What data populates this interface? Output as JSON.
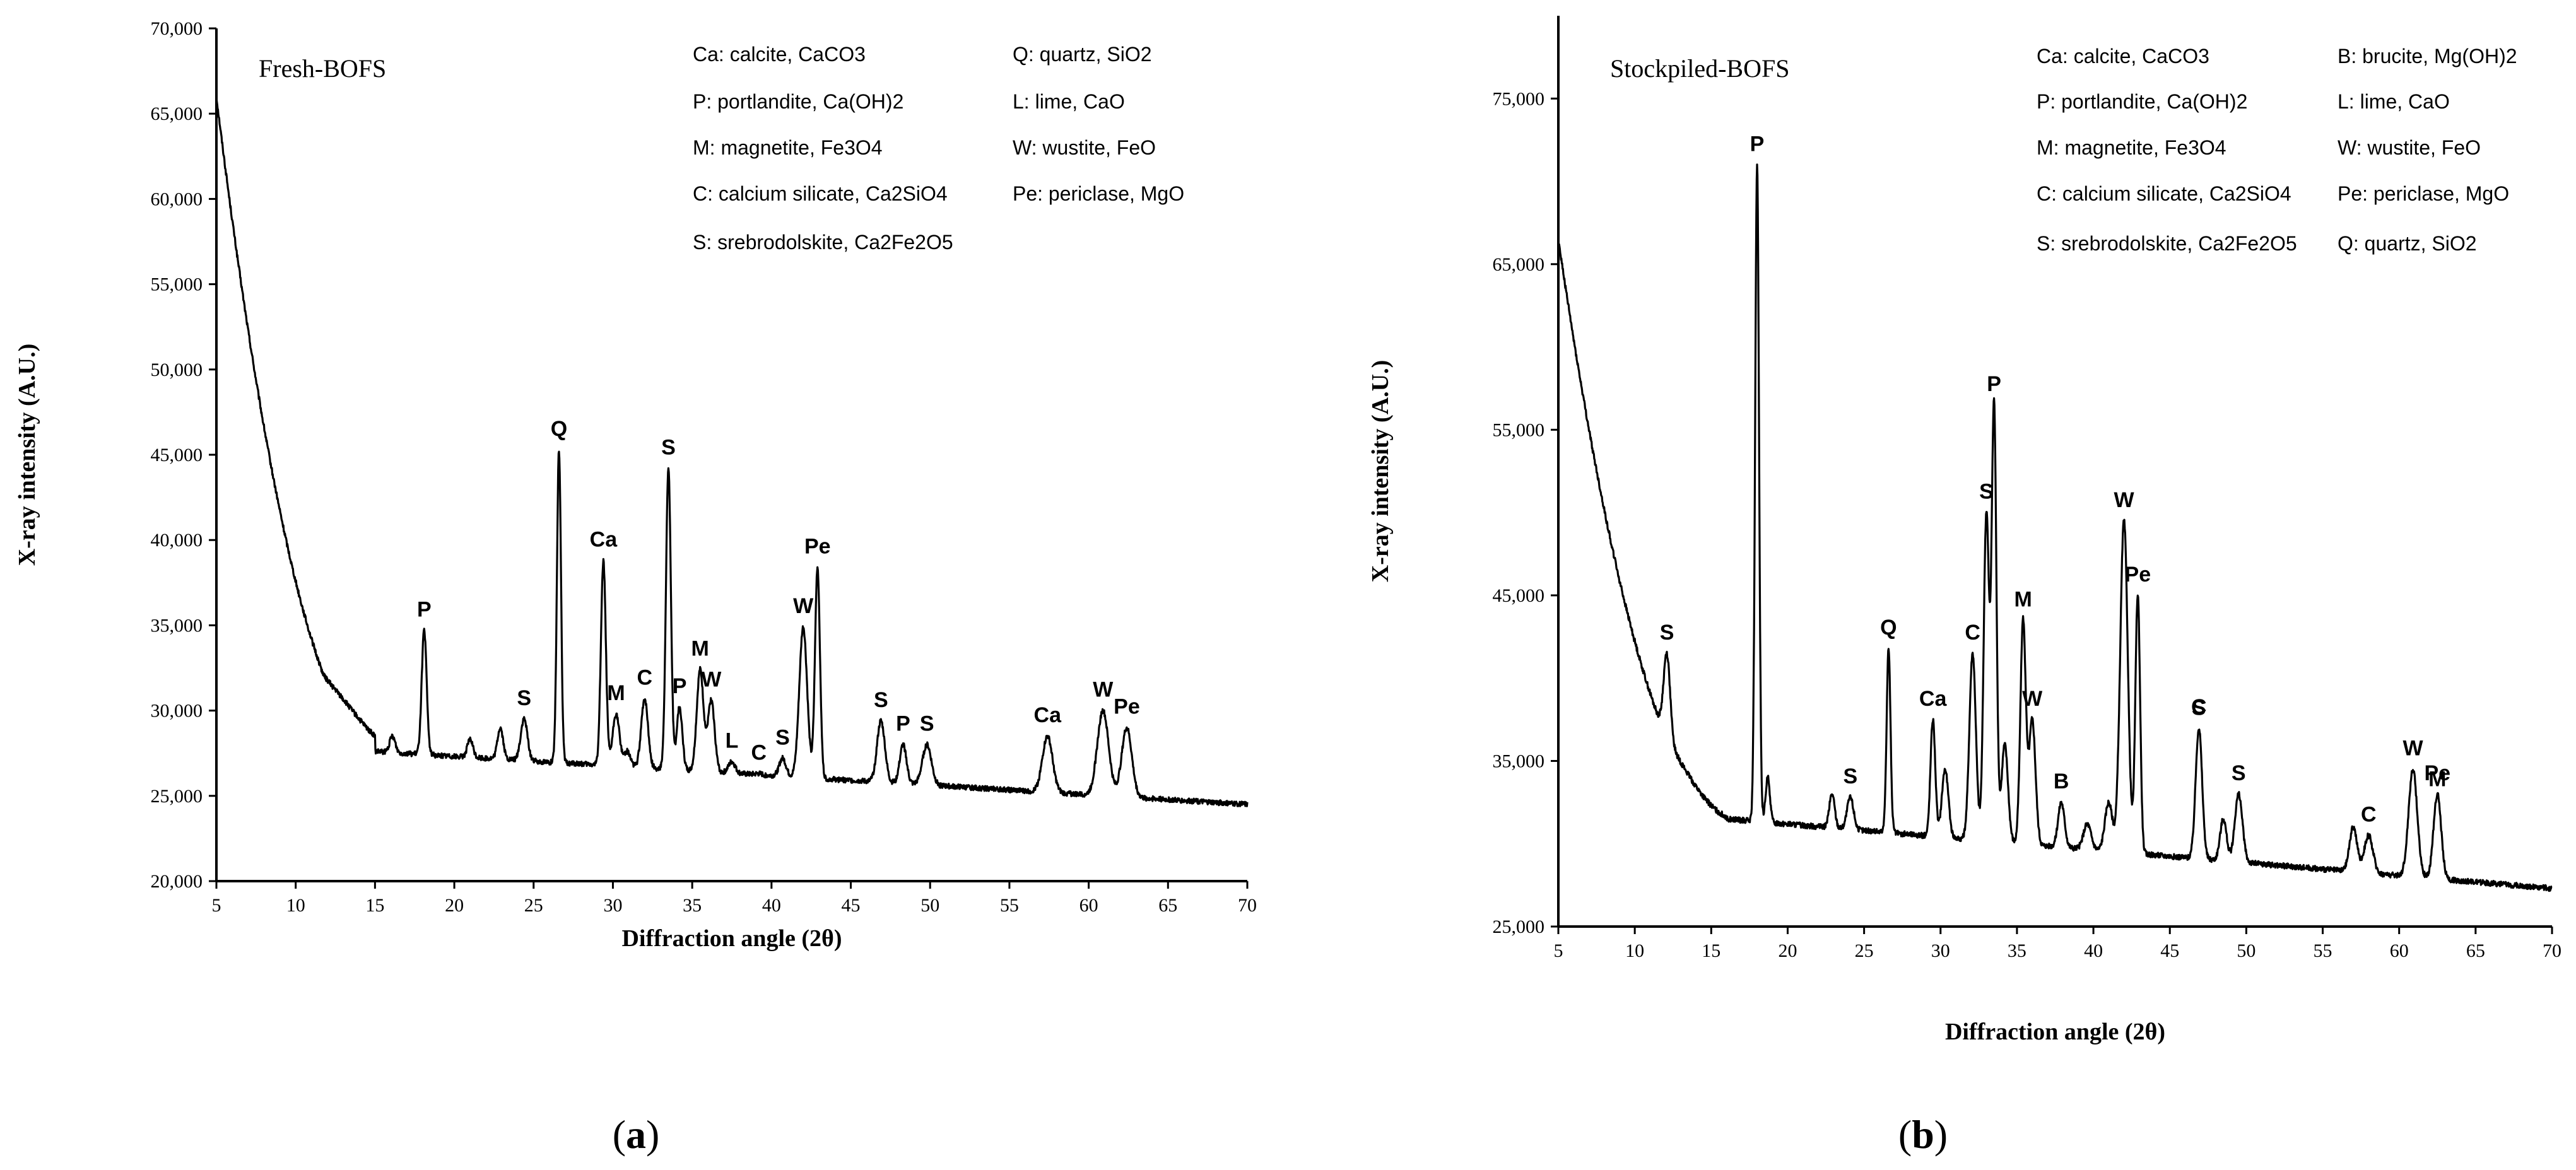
{
  "chart_data": [
    {
      "type": "line",
      "title": "Fresh-BOFS",
      "caption": "(a)",
      "caption_letter": "a",
      "xlabel": "Diffraction angle (2θ)",
      "ylabel": "X-ray intensity (A.U.)",
      "xlim": [
        5,
        70
      ],
      "ylim": [
        20000,
        70000
      ],
      "xticks": [
        "5",
        "10",
        "15",
        "20",
        "25",
        "30",
        "35",
        "40",
        "45",
        "50",
        "55",
        "60",
        "65",
        "70"
      ],
      "yticks": [
        "20,000",
        "25,000",
        "30,000",
        "35,000",
        "40,000",
        "45,000",
        "50,000",
        "55,000",
        "60,000",
        "65,000",
        "70,000"
      ],
      "ytick_values": [
        20000,
        25000,
        30000,
        35000,
        40000,
        45000,
        50000,
        55000,
        60000,
        65000,
        70000
      ],
      "legend": [
        "Ca: calcite, CaCO3",
        "Q: quartz, SiO2",
        "P: portlandite, Ca(OH)2",
        "L: lime, CaO",
        "M: magnetite, Fe3O4",
        "W: wustite, FeO",
        "C: calcium silicate, Ca2SiO4",
        "Pe: periclase, MgO",
        "S: srebrodolskite, Ca2Fe2O5"
      ],
      "peaks": [
        {
          "label": "P",
          "x": 18.1,
          "y": 34700,
          "w": 0.22
        },
        {
          "label": "S",
          "x": 24.4,
          "y": 29500,
          "w": 0.3
        },
        {
          "label": "Q",
          "x": 26.6,
          "y": 45300,
          "w": 0.18
        },
        {
          "label": "Ca",
          "x": 29.4,
          "y": 38800,
          "w": 0.22
        },
        {
          "label": "M",
          "x": 30.2,
          "y": 29800,
          "w": 0.3
        },
        {
          "label": "C",
          "x": 32.0,
          "y": 30700,
          "w": 0.3
        },
        {
          "label": "S",
          "x": 33.5,
          "y": 44200,
          "w": 0.22
        },
        {
          "label": "P",
          "x": 34.2,
          "y": 30200,
          "w": 0.25
        },
        {
          "label": "M",
          "x": 35.5,
          "y": 32400,
          "w": 0.3
        },
        {
          "label": "W",
          "x": 36.2,
          "y": 30600,
          "w": 0.3
        },
        {
          "label": "L",
          "x": 37.5,
          "y": 27000,
          "w": 0.3
        },
        {
          "label": "C",
          "x": 39.2,
          "y": 26300,
          "w": 0.3
        },
        {
          "label": "S",
          "x": 40.7,
          "y": 27200,
          "w": 0.3
        },
        {
          "label": "W",
          "x": 42.0,
          "y": 34900,
          "w": 0.35
        },
        {
          "label": "Pe",
          "x": 42.9,
          "y": 38400,
          "w": 0.22
        },
        {
          "label": "S",
          "x": 46.9,
          "y": 29400,
          "w": 0.35
        },
        {
          "label": "P",
          "x": 48.3,
          "y": 28000,
          "w": 0.3
        },
        {
          "label": "S",
          "x": 49.8,
          "y": 28000,
          "w": 0.4
        },
        {
          "label": "Ca",
          "x": 57.4,
          "y": 28500,
          "w": 0.45
        },
        {
          "label": "W",
          "x": 60.9,
          "y": 30000,
          "w": 0.5
        },
        {
          "label": "Pe",
          "x": 62.4,
          "y": 29000,
          "w": 0.45
        }
      ],
      "minor_peaks": [
        {
          "x": 16.1,
          "y": 28500,
          "w": 0.25
        },
        {
          "x": 21.0,
          "y": 28300,
          "w": 0.25
        },
        {
          "x": 22.9,
          "y": 29000,
          "w": 0.25
        },
        {
          "x": 30.9,
          "y": 27600,
          "w": 0.3
        }
      ],
      "baseline": {
        "start": 66000,
        "knee_x": 15,
        "knee_y": 27600,
        "end": 24500,
        "hump_y": 40000,
        "hump_x": 11
      }
    },
    {
      "type": "line",
      "title": "Stockpiled-BOFS",
      "caption": "(b)",
      "caption_letter": "b",
      "xlabel": "Diffraction angle (2θ)",
      "ylabel": "X-ray intensity (A.U.)",
      "xlim": [
        5,
        70
      ],
      "ylim": [
        25000,
        80000
      ],
      "xticks": [
        "5",
        "10",
        "15",
        "20",
        "25",
        "30",
        "35",
        "40",
        "45",
        "50",
        "55",
        "60",
        "65",
        "70"
      ],
      "yticks": [
        "25,000",
        "35,000",
        "45,000",
        "55,000",
        "65,000",
        "75,000"
      ],
      "ytick_values": [
        25000,
        35000,
        45000,
        55000,
        65000,
        75000
      ],
      "legend": [
        "Ca: calcite, CaCO3",
        "B: brucite, Mg(OH)2",
        "P: portlandite, Ca(OH)2",
        "L: lime, CaO",
        "M: magnetite, Fe3O4",
        "W: wustite, FeO",
        "C: calcium silicate, Ca2SiO4",
        "Pe: periclase, MgO",
        "S: srebrodolskite, Ca2Fe2O5",
        "Q: quartz, SiO2"
      ],
      "peaks": [
        {
          "label": "S",
          "x": 12.1,
          "y": 41500,
          "w": 0.3
        },
        {
          "label": "P",
          "x": 18.0,
          "y": 71000,
          "w": 0.18
        },
        {
          "label": "S",
          "x": 24.1,
          "y": 32800,
          "w": 0.3
        },
        {
          "label": "Q",
          "x": 26.6,
          "y": 41800,
          "w": 0.18
        },
        {
          "label": "Ca",
          "x": 29.5,
          "y": 37500,
          "w": 0.22
        },
        {
          "label": "C",
          "x": 32.1,
          "y": 41500,
          "w": 0.3
        },
        {
          "label": "S",
          "x": 33.0,
          "y": 50000,
          "w": 0.25
        },
        {
          "label": "P",
          "x": 33.5,
          "y": 56500,
          "w": 0.22
        },
        {
          "label": "M",
          "x": 35.4,
          "y": 43500,
          "w": 0.25
        },
        {
          "label": "W",
          "x": 36.0,
          "y": 37500,
          "w": 0.3
        },
        {
          "label": "B",
          "x": 37.9,
          "y": 32500,
          "w": 0.3
        },
        {
          "label": "W",
          "x": 42.0,
          "y": 49500,
          "w": 0.35
        },
        {
          "label": "Pe",
          "x": 42.9,
          "y": 45000,
          "w": 0.22
        },
        {
          "label": "C",
          "x": 46.9,
          "y": 37000,
          "w": 0.3
        },
        {
          "label": "S",
          "x": 49.5,
          "y": 33000,
          "w": 0.35
        },
        {
          "label": "C",
          "x": 58.0,
          "y": 30500,
          "w": 0.4
        },
        {
          "label": "W",
          "x": 60.9,
          "y": 34500,
          "w": 0.4
        },
        {
          "label": "Pe",
          "x": 62.5,
          "y": 33000,
          "w": 0.35
        }
      ],
      "extra_labels": [
        {
          "label": "S",
          "anchor_peak": 13,
          "dy": 2600
        },
        {
          "label": "M",
          "anchor_peak": 17,
          "dy": 2300
        }
      ],
      "minor_peaks": [
        {
          "x": 18.7,
          "y": 34000,
          "w": 0.2
        },
        {
          "x": 22.9,
          "y": 33000,
          "w": 0.25
        },
        {
          "x": 30.3,
          "y": 34500,
          "w": 0.3
        },
        {
          "x": 34.2,
          "y": 36000,
          "w": 0.3
        },
        {
          "x": 39.6,
          "y": 31200,
          "w": 0.35
        },
        {
          "x": 41.0,
          "y": 32500,
          "w": 0.35
        },
        {
          "x": 48.5,
          "y": 31500,
          "w": 0.3
        },
        {
          "x": 57.0,
          "y": 31000,
          "w": 0.35
        }
      ],
      "baseline": {
        "start": 66500,
        "knee_x": 16,
        "knee_y": 31500,
        "end": 27300,
        "hump_y": 44000,
        "hump_x": 10
      }
    }
  ]
}
